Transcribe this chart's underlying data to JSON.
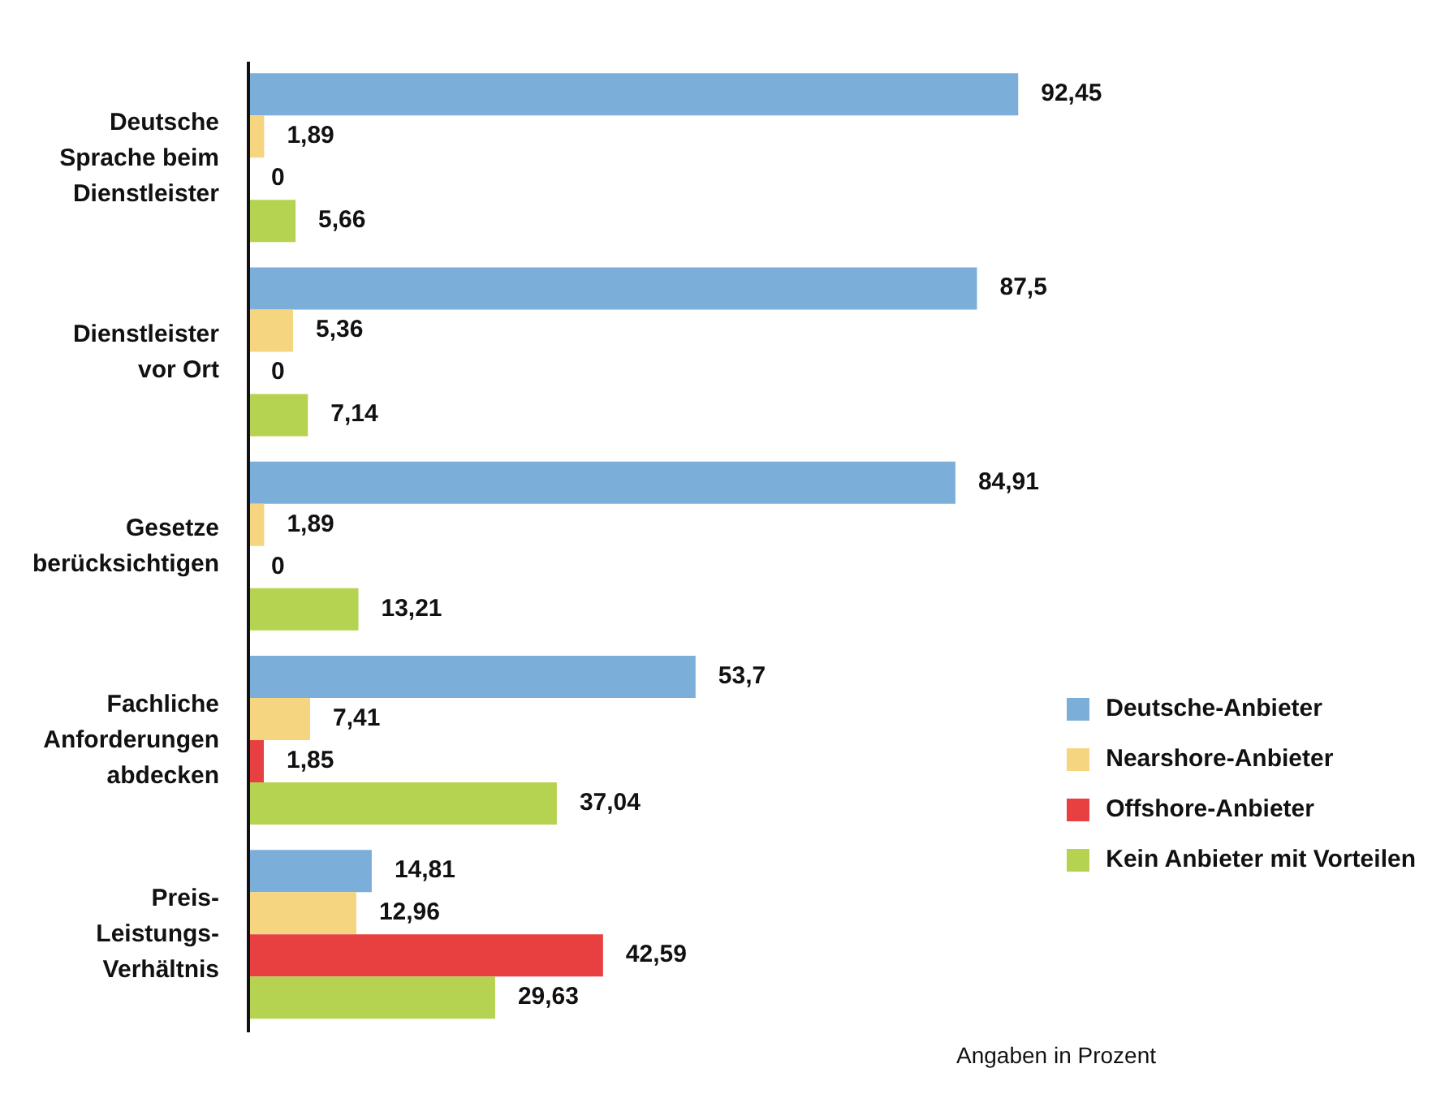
{
  "chart_data": {
    "type": "bar",
    "orientation": "horizontal",
    "categories": [
      "Deutsche Sprache beim Dienstleister",
      "Dienstleister vor Ort",
      "Gesetze berücksichtigen",
      "Fachliche Anforderungen abdecken",
      "Preis-Leistungs-Verhältnis"
    ],
    "series": [
      {
        "name": "Deutsche-Anbieter",
        "color": "#7bafd9",
        "values": [
          92.45,
          87.5,
          84.91,
          53.7,
          14.81
        ],
        "value_labels": [
          "92,45",
          "87,5",
          "84,91",
          "53,7",
          "14,81"
        ]
      },
      {
        "name": "Nearshore-Anbieter",
        "color": "#f5d57f",
        "values": [
          1.89,
          5.36,
          1.89,
          7.41,
          12.96
        ],
        "value_labels": [
          "1,89",
          "5,36",
          "1,89",
          "7,41",
          "12,96"
        ]
      },
      {
        "name": "Offshore-Anbieter",
        "color": "#e84040",
        "values": [
          0,
          0,
          0,
          1.85,
          42.59
        ],
        "value_labels": [
          "0",
          "0",
          "0",
          "1,85",
          "42,59"
        ]
      },
      {
        "name": "Kein Anbieter mit Vorteilen",
        "color": "#b5d350",
        "values": [
          5.66,
          7.14,
          13.21,
          37.04,
          29.63
        ],
        "value_labels": [
          "5,66",
          "7,14",
          "13,21",
          "37,04",
          "29,63"
        ]
      }
    ],
    "legend": "right",
    "annotations": [
      "Angaben in Prozent"
    ]
  }
}
